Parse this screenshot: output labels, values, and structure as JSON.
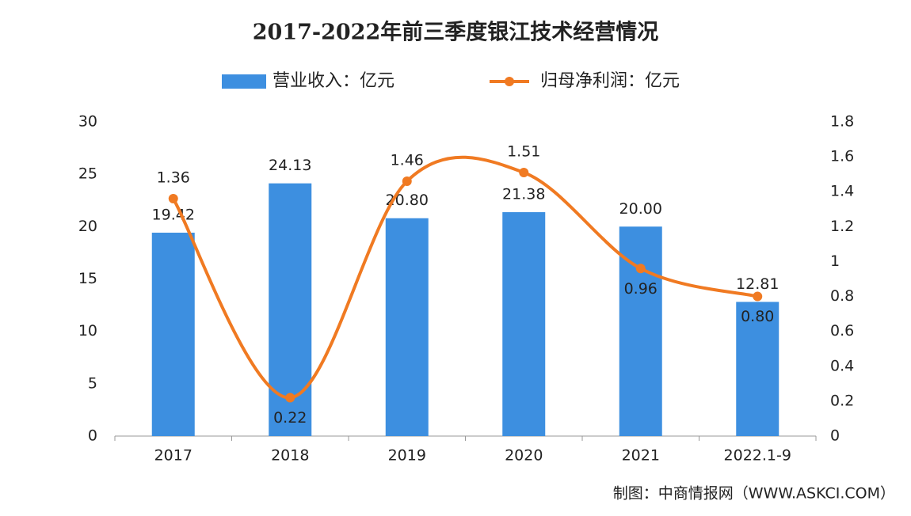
{
  "chart_data": {
    "type": "bar_line",
    "title": "2017-2022年前三季度银江技术经营情况",
    "source": "制图：中商情报网（WWW.ASKCI.COM）",
    "categories": [
      "2017",
      "2018",
      "2019",
      "2020",
      "2021",
      "2022.1-9"
    ],
    "series": [
      {
        "name": "营业收入：亿元",
        "type": "bar",
        "color": "#3d8fe0",
        "values": [
          19.42,
          24.13,
          20.8,
          21.38,
          20.0,
          12.81
        ],
        "value_labels": [
          "19.42",
          "24.13",
          "20.80",
          "21.38",
          "20.00",
          "12.81"
        ]
      },
      {
        "name": "归母净利润：亿元",
        "type": "line",
        "axis": "y2",
        "color": "#f07a22",
        "values": [
          1.36,
          0.22,
          1.46,
          1.51,
          0.96,
          0.8
        ],
        "value_labels": [
          "1.36",
          "0.22",
          "1.46",
          "1.51",
          "0.96",
          "0.80"
        ]
      }
    ],
    "ylim": [
      0,
      30
    ],
    "yticks": [
      0,
      5,
      10,
      15,
      20,
      25,
      30
    ],
    "y2lim": [
      0,
      1.8
    ],
    "y2ticks": [
      0,
      0.2,
      0.4,
      0.6,
      0.8,
      1,
      1.2,
      1.4,
      1.6,
      1.8
    ],
    "legend": "top",
    "grid": false
  }
}
